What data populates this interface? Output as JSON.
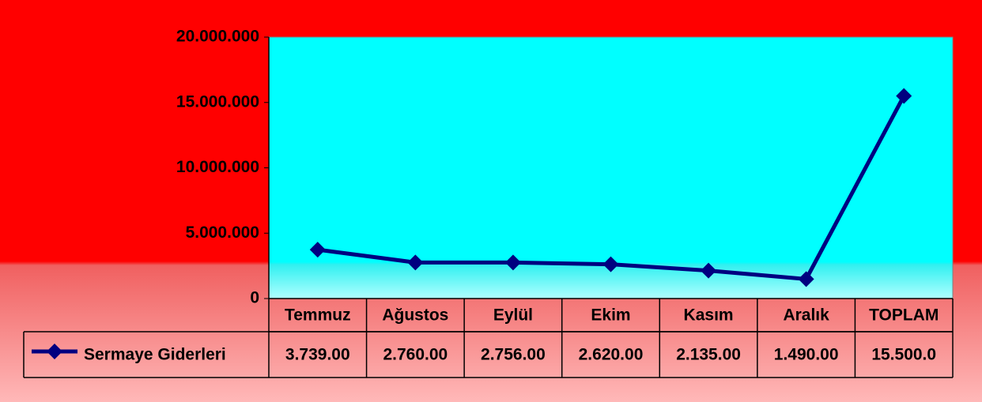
{
  "chart_data": {
    "type": "line",
    "categories": [
      "Temmuz",
      "Ağustos",
      "Eylül",
      "Ekim",
      "Kasım",
      "Aralık",
      "TOPLAM"
    ],
    "series": [
      {
        "name": "Sermaye Giderleri",
        "color": "#000080",
        "values": [
          3739000,
          2760000,
          2756000,
          2620000,
          2135000,
          1490000,
          15500000
        ],
        "value_labels": [
          "3.739.00",
          "2.760.00",
          "2.756.00",
          "2.620.00",
          "2.135.00",
          "1.490.00",
          "15.500.0"
        ]
      }
    ],
    "ylim": [
      0,
      20000000
    ],
    "yticks": [
      {
        "value": 0,
        "label": "0"
      },
      {
        "value": 5000000,
        "label": "5.000.000"
      },
      {
        "value": 10000000,
        "label": "10.000.000"
      },
      {
        "value": 15000000,
        "label": "15.000.000"
      },
      {
        "value": 20000000,
        "label": "20.000.000"
      }
    ]
  }
}
